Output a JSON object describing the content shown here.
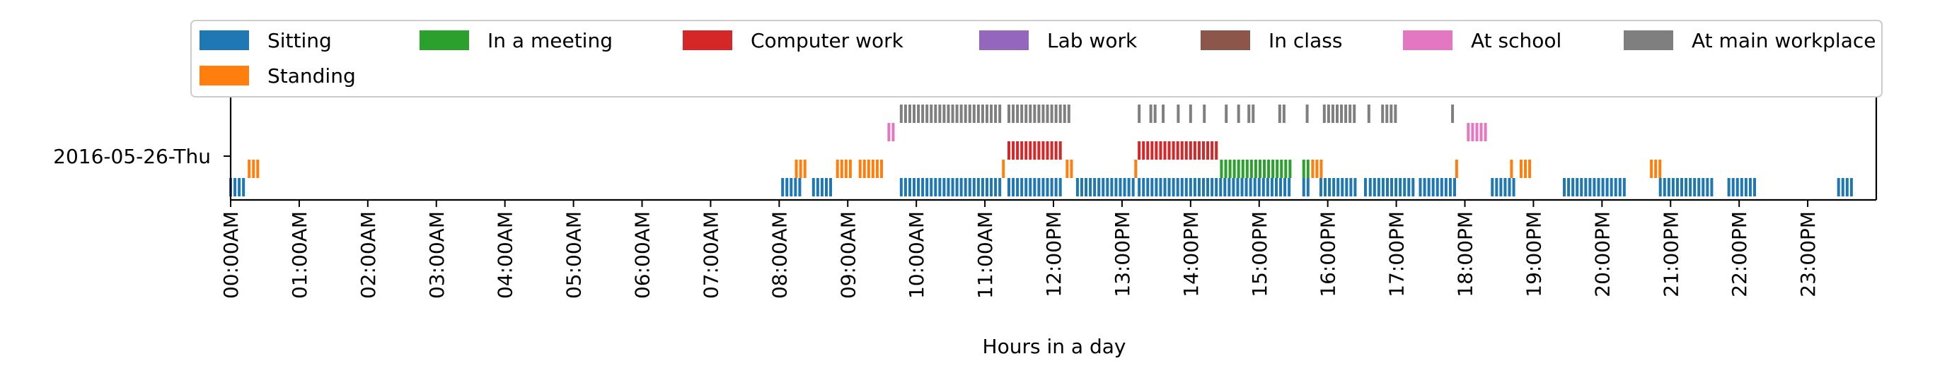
{
  "chart_data": {
    "type": "event-timeline",
    "title": "",
    "xlabel": "Hours in a day",
    "ylabel": "",
    "xlim": [
      0,
      24
    ],
    "row_label": "2016-05-26-Thu",
    "x_ticks": [
      {
        "value": 0,
        "label": "00:00AM"
      },
      {
        "value": 1,
        "label": "01:00AM"
      },
      {
        "value": 2,
        "label": "02:00AM"
      },
      {
        "value": 3,
        "label": "03:00AM"
      },
      {
        "value": 4,
        "label": "04:00AM"
      },
      {
        "value": 5,
        "label": "05:00AM"
      },
      {
        "value": 6,
        "label": "06:00AM"
      },
      {
        "value": 7,
        "label": "07:00AM"
      },
      {
        "value": 8,
        "label": "08:00AM"
      },
      {
        "value": 9,
        "label": "09:00AM"
      },
      {
        "value": 10,
        "label": "10:00AM"
      },
      {
        "value": 11,
        "label": "11:00AM"
      },
      {
        "value": 12,
        "label": "12:00PM"
      },
      {
        "value": 13,
        "label": "13:00PM"
      },
      {
        "value": 14,
        "label": "14:00PM"
      },
      {
        "value": 15,
        "label": "15:00PM"
      },
      {
        "value": 16,
        "label": "16:00PM"
      },
      {
        "value": 17,
        "label": "17:00PM"
      },
      {
        "value": 18,
        "label": "18:00PM"
      },
      {
        "value": 19,
        "label": "19:00PM"
      },
      {
        "value": 20,
        "label": "20:00PM"
      },
      {
        "value": 21,
        "label": "21:00PM"
      },
      {
        "value": 22,
        "label": "22:00PM"
      },
      {
        "value": 23,
        "label": "23:00PM"
      }
    ],
    "legend": {
      "placement": "top",
      "rows": [
        [
          "Sitting",
          "In a meeting",
          "Computer work",
          "Lab work",
          "In class",
          "At school",
          "At main workplace"
        ],
        [
          "Standing"
        ]
      ]
    },
    "series": [
      {
        "name": "Sitting",
        "color": "#1f77b4",
        "lane": 1,
        "intervals": [
          [
            0.0,
            0.22
          ],
          [
            8.05,
            8.35
          ],
          [
            8.5,
            8.8
          ],
          [
            9.78,
            11.25
          ],
          [
            11.35,
            12.15
          ],
          [
            12.35,
            13.2
          ],
          [
            13.25,
            15.45
          ],
          [
            15.65,
            15.72
          ],
          [
            15.9,
            16.4
          ],
          [
            16.55,
            16.6
          ],
          [
            16.62,
            17.3
          ],
          [
            17.35,
            17.85
          ],
          [
            18.4,
            18.75
          ],
          [
            19.45,
            20.35
          ],
          [
            20.85,
            21.65
          ],
          [
            21.85,
            22.25
          ],
          [
            23.45,
            23.68
          ]
        ]
      },
      {
        "name": "Standing",
        "color": "#ff7f0e",
        "lane": 1.5,
        "intervals": [
          [
            0.27,
            0.4
          ],
          [
            8.25,
            8.4
          ],
          [
            8.85,
            9.08
          ],
          [
            9.18,
            9.55
          ],
          [
            11.27,
            11.32
          ],
          [
            12.2,
            12.28
          ],
          [
            13.2,
            13.25
          ],
          [
            15.78,
            15.95
          ],
          [
            17.88,
            17.93
          ],
          [
            18.68,
            18.73
          ],
          [
            18.82,
            18.95
          ],
          [
            20.72,
            20.85
          ]
        ]
      },
      {
        "name": "In a meeting",
        "color": "#2ca02c",
        "lane": 1.5,
        "intervals": [
          [
            14.45,
            15.5
          ],
          [
            15.65,
            15.72
          ]
        ]
      },
      {
        "name": "Computer work",
        "color": "#d62728",
        "lane": 2,
        "intervals": [
          [
            11.35,
            12.15
          ],
          [
            13.25,
            14.4
          ]
        ]
      },
      {
        "name": "Lab work",
        "color": "#9467bd",
        "lane": 2,
        "intervals": []
      },
      {
        "name": "In class",
        "color": "#8c564b",
        "lane": 2,
        "intervals": []
      },
      {
        "name": "At school",
        "color": "#e377c2",
        "lane": 2.5,
        "intervals": [
          [
            9.6,
            9.72
          ],
          [
            18.05,
            18.32
          ]
        ]
      },
      {
        "name": "At main workplace",
        "color": "#7f7f7f",
        "lane": 3,
        "intervals": [
          [
            9.78,
            11.25
          ],
          [
            11.35,
            12.25
          ],
          [
            13.25,
            13.3
          ],
          [
            13.42,
            13.5
          ],
          [
            13.6,
            13.65
          ],
          [
            13.82,
            13.87
          ],
          [
            14.0,
            14.05
          ],
          [
            14.2,
            14.25
          ],
          [
            14.52,
            14.57
          ],
          [
            14.7,
            14.75
          ],
          [
            14.85,
            14.95
          ],
          [
            15.3,
            15.4
          ],
          [
            15.7,
            15.75
          ],
          [
            15.95,
            16.42
          ],
          [
            16.6,
            16.65
          ],
          [
            16.8,
            17.0
          ],
          [
            17.82,
            17.87
          ]
        ]
      }
    ],
    "marker_spacing_hours": 0.0625
  }
}
